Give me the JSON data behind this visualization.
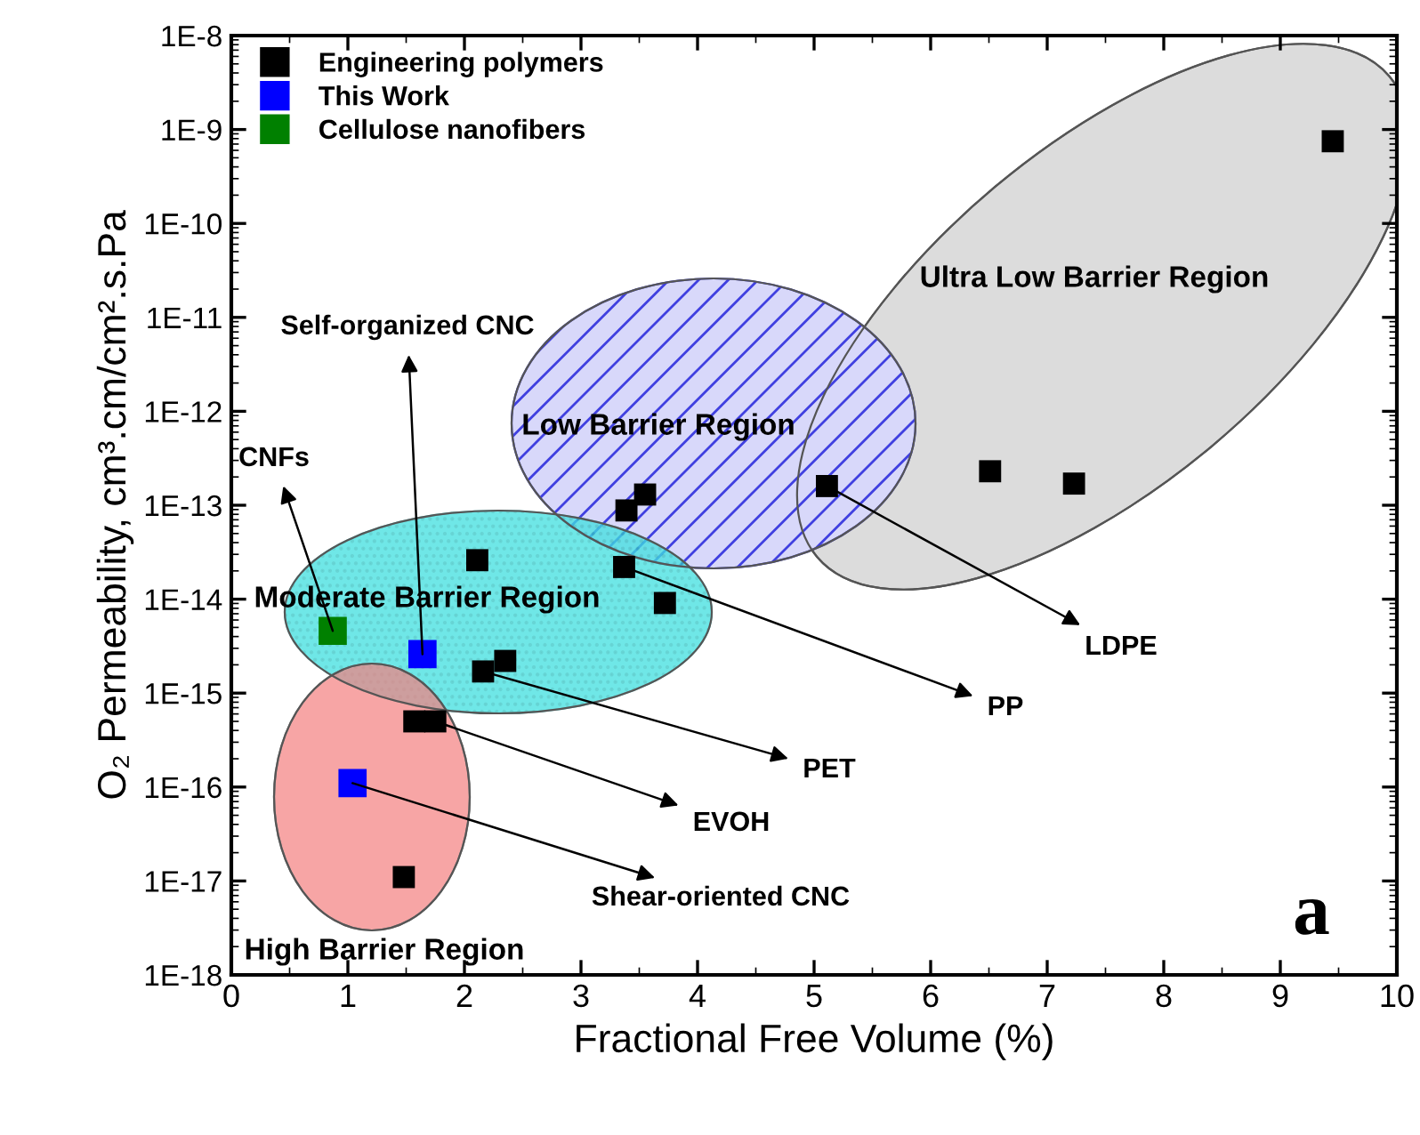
{
  "chart_data": {
    "type": "scatter",
    "xlabel": "Fractional Free Volume (%)",
    "ylabel": "O₂ Permeability, cm³.cm/cm².s.Pa",
    "log": "y",
    "grid": false,
    "legend": "top left",
    "marker": "square",
    "xlim": [
      0,
      10
    ],
    "xticks": [
      0,
      1,
      2,
      3,
      4,
      5,
      6,
      7,
      8,
      9,
      10
    ],
    "ylim": [
      1e-18,
      1e-08
    ],
    "yticks": [
      {
        "value": 1e-18,
        "label": "1E-18"
      },
      {
        "value": 1e-17,
        "label": "1E-17"
      },
      {
        "value": 1e-16,
        "label": "1E-16"
      },
      {
        "value": 1e-15,
        "label": "1E-15"
      },
      {
        "value": 1e-14,
        "label": "1E-14"
      },
      {
        "value": 1e-13,
        "label": "1E-13"
      },
      {
        "value": 1e-12,
        "label": "1E-12"
      },
      {
        "value": 1e-11,
        "label": "1E-11"
      },
      {
        "value": 1e-10,
        "label": "1E-10"
      },
      {
        "value": 1e-09,
        "label": "1E-9"
      },
      {
        "value": 1e-08,
        "label": "1E-8"
      }
    ],
    "series": [
      {
        "name": "Engineering polymers",
        "color": "#000000",
        "x": [
          9.45,
          6.51,
          7.23,
          5.11,
          3.55,
          3.39,
          2.11,
          3.37,
          3.72,
          2.16,
          2.35,
          1.57,
          1.75,
          1.48
        ],
        "values": [
          7.5e-10,
          2.3e-13,
          1.7e-13,
          1.6e-13,
          1.3e-13,
          8.8e-14,
          2.6e-14,
          2.2e-14,
          9.1e-15,
          1.7e-15,
          2.2e-15,
          5e-16,
          5e-16,
          1.1e-17
        ]
      },
      {
        "name": "This Work",
        "color": "#0000ff",
        "x": [
          1.64,
          1.04
        ],
        "values": [
          2.6e-15,
          1.1e-16
        ]
      },
      {
        "name": "Cellulose nanofibers",
        "color": "#008000",
        "x": [
          0.87
        ],
        "values": [
          4.6e-15
        ]
      }
    ],
    "annotations": [
      {
        "text": "Self-organized CNC",
        "x": 1.64,
        "y": 2.6e-15
      },
      {
        "text": "CNFs",
        "x": 0.87,
        "y": 4.6e-15
      },
      {
        "text": "LDPE",
        "x": 5.11,
        "y": 1.6e-13
      },
      {
        "text": "PP",
        "x": 3.37,
        "y": 2.2e-14
      },
      {
        "text": "PET",
        "x": 2.16,
        "y": 1.7e-15
      },
      {
        "text": "EVOH",
        "x": 1.75,
        "y": 5e-16
      },
      {
        "text": "Shear-oriented CNC",
        "x": 1.04,
        "y": 1.1e-16
      },
      "Ultra Low Barrier Region",
      "Low Barrier Region",
      "Moderate Barrier Region",
      "High Barrier Region",
      "a"
    ]
  }
}
